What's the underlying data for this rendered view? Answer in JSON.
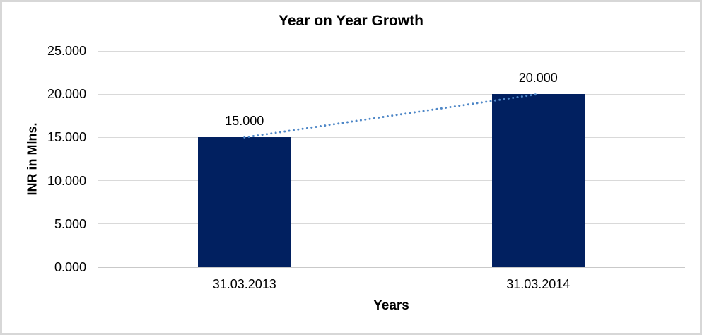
{
  "chart": {
    "title": "Year on Year Growth",
    "x_axis_title": "Years",
    "y_axis_title": "INR in Mlns."
  },
  "chart_data": {
    "type": "bar",
    "title": "Year on Year Growth",
    "xlabel": "Years",
    "ylabel": "INR in Mlns.",
    "categories": [
      "31.03.2013",
      "31.03.2014"
    ],
    "values": [
      15,
      20
    ],
    "data_labels": [
      "15.000",
      "20.000"
    ],
    "ylim": [
      0,
      25
    ],
    "y_tick_values": [
      0,
      5,
      10,
      15,
      20,
      25
    ],
    "y_tick_labels": [
      "0.000",
      "5.000",
      "10.000",
      "15.000",
      "20.000",
      "25.000"
    ],
    "grid": true,
    "legend": false,
    "trendline": {
      "type": "linear",
      "style": "round-dotted",
      "connects_values": [
        15,
        20
      ]
    },
    "colors": {
      "bar": "#012060",
      "trendline": "#4e87c7",
      "gridline": "#d9d9d9",
      "axis_line": "#c9c9c9",
      "chart_border": "#d7d7d7",
      "text": "#000000",
      "background": "#ffffff"
    }
  }
}
